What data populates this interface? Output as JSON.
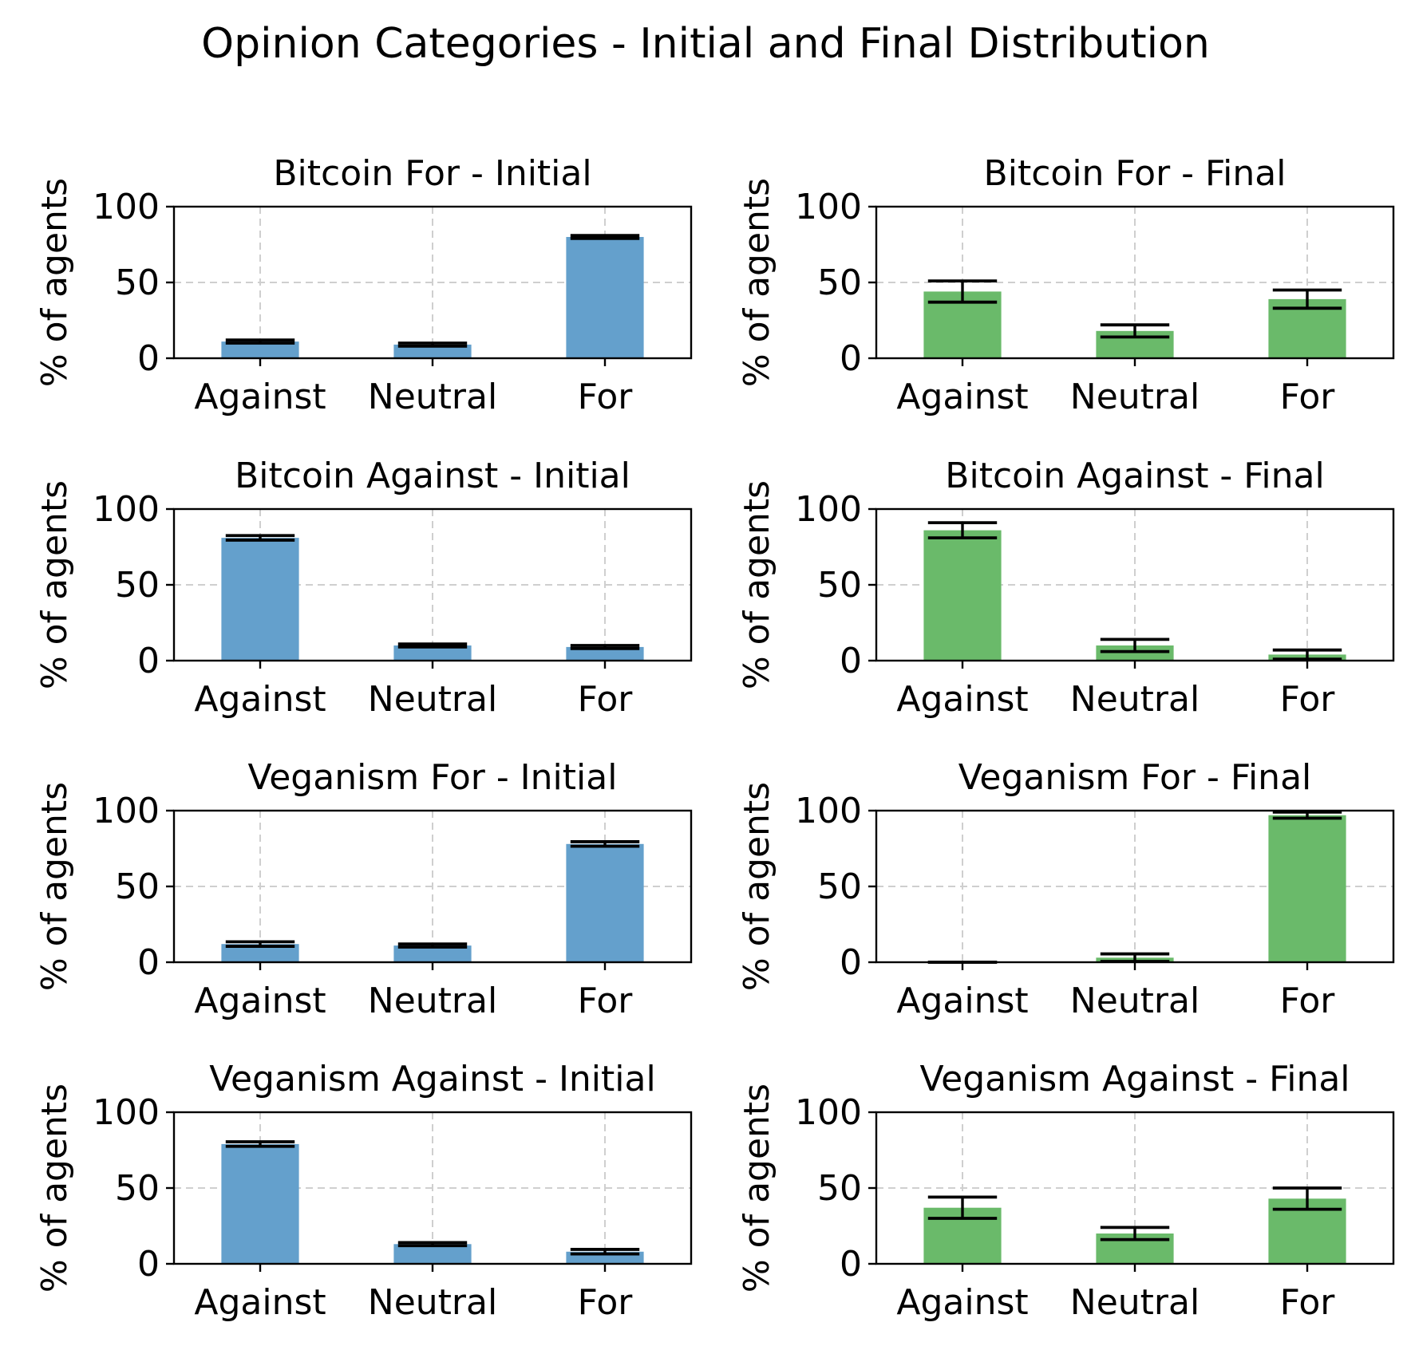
{
  "chart_data": {
    "suptitle": "Opinion Categories - Initial and Final Distribution",
    "type": "bar",
    "ylabel": "% of agents",
    "ylim": [
      0,
      100
    ],
    "yticks": [
      0,
      50,
      100
    ],
    "categories": [
      "Against",
      "Neutral",
      "For"
    ],
    "grid": true,
    "colors": {
      "initial": "#64a0cc",
      "final": "#6aba6a"
    },
    "panels": [
      {
        "title": "Bitcoin For - Initial",
        "kind": "initial",
        "values": [
          11,
          9,
          80
        ],
        "errors": [
          1,
          1,
          1
        ]
      },
      {
        "title": "Bitcoin For - Final",
        "kind": "final",
        "values": [
          44,
          18,
          39
        ],
        "errors": [
          7,
          4,
          6
        ]
      },
      {
        "title": "Bitcoin Against - Initial",
        "kind": "initial",
        "values": [
          81,
          10,
          9
        ],
        "errors": [
          1.5,
          1,
          1
        ]
      },
      {
        "title": "Bitcoin Against - Final",
        "kind": "final",
        "values": [
          86,
          10,
          4
        ],
        "errors": [
          5,
          4,
          3
        ]
      },
      {
        "title": "Veganism For - Initial",
        "kind": "initial",
        "values": [
          12,
          11,
          78
        ],
        "errors": [
          1.5,
          1,
          1.5
        ]
      },
      {
        "title": "Veganism For - Final",
        "kind": "final",
        "values": [
          0,
          3,
          97
        ],
        "errors": [
          0,
          2.5,
          2
        ]
      },
      {
        "title": "Veganism Against - Initial",
        "kind": "initial",
        "values": [
          79,
          13,
          8
        ],
        "errors": [
          1.5,
          1,
          1.5
        ]
      },
      {
        "title": "Veganism Against - Final",
        "kind": "final",
        "values": [
          37,
          20,
          43
        ],
        "errors": [
          7,
          4,
          7
        ]
      }
    ]
  }
}
